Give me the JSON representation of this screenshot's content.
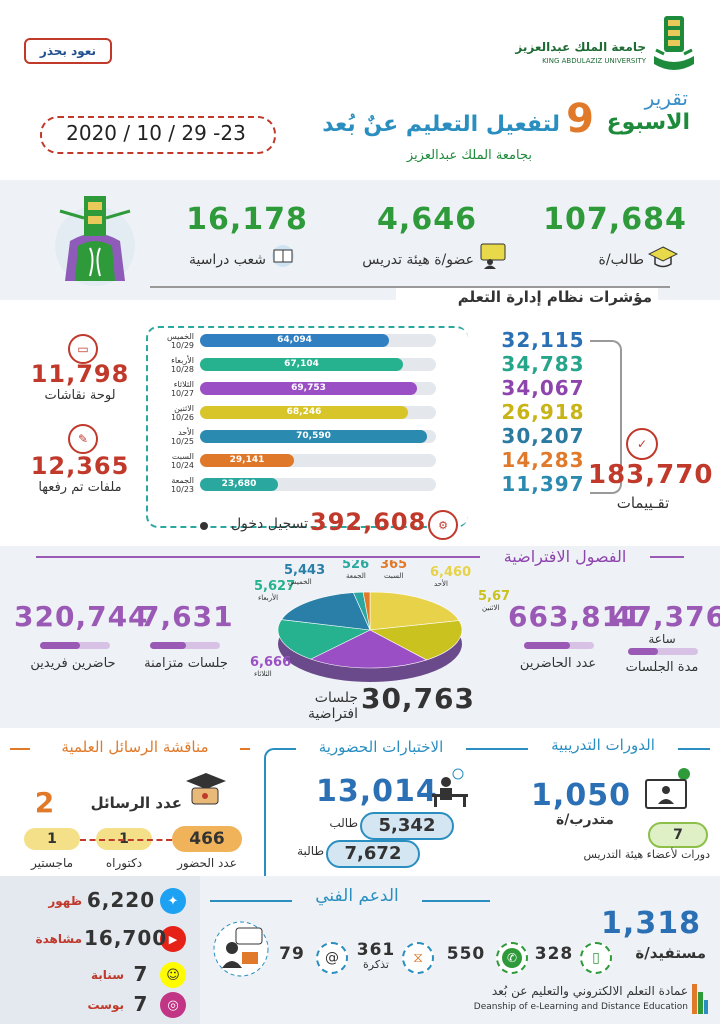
{
  "header": {
    "brand_tag": "نعود بحذر",
    "university_ar": "جامعة الملك عبدالعزيز",
    "university_en": "KING ABDULAZIZ UNIVERSITY",
    "report_label": "تقرير",
    "week_title": "الاسبوع",
    "week_number": "9",
    "title_rest": "لتفعيل التعليم عنٌ بُعد",
    "subtitle": "بجامعة الملك عبدالعزيز",
    "date_range": "2020 / 10 / 29 -23"
  },
  "stats": {
    "students_value": "107,684",
    "students_label": "طالب/ة",
    "faculty_value": "4,646",
    "faculty_label": "عضو/ة هيئة تدريس",
    "sections_value": "16,178",
    "sections_label": "شعب دراسية"
  },
  "lms": {
    "section_title": "مؤشرات نظام إدارة التعلم",
    "discussion_value": "11,798",
    "discussion_label": "لوحة نقاشات",
    "files_value": "12,365",
    "files_label": "ملفات تم رفعها",
    "evaluations_value": "183,770",
    "evaluations_label": "تقـييمات",
    "logins_value": "392,608",
    "logins_label": "تسجيل دخول",
    "days": [
      {
        "name": "الخميس",
        "date": "10/29",
        "bar_value": "64,094",
        "side_value": "32,115",
        "bar_color": "#2f7fc1",
        "side_color": "#2b6fb5",
        "fraction": 0.8
      },
      {
        "name": "الأربعاء",
        "date": "10/28",
        "bar_value": "67,104",
        "side_value": "34,783",
        "bar_color": "#27b28f",
        "side_color": "#27a58a",
        "fraction": 0.86
      },
      {
        "name": "الثلاثاء",
        "date": "10/27",
        "bar_value": "69,753",
        "side_value": "34,067",
        "bar_color": "#9b4fc4",
        "side_color": "#8e44ad",
        "fraction": 0.92
      },
      {
        "name": "الاثنين",
        "date": "10/26",
        "bar_value": "68,246",
        "side_value": "26,918",
        "bar_color": "#d8c52a",
        "side_color": "#c9b417",
        "fraction": 0.88
      },
      {
        "name": "الأحد",
        "date": "10/25",
        "bar_value": "70,590",
        "side_value": "30,207",
        "bar_color": "#2b8ab0",
        "side_color": "#2b7aa0",
        "fraction": 0.96
      },
      {
        "name": "السبت",
        "date": "10/24",
        "bar_value": "29,141",
        "side_value": "14,283",
        "bar_color": "#e0782a",
        "side_color": "#e07a2a",
        "fraction": 0.4
      },
      {
        "name": "الجمعة",
        "date": "10/23",
        "bar_value": "23,680",
        "side_value": "11,397",
        "bar_color": "#2aa8a0",
        "side_color": "#2b8ab0",
        "fraction": 0.33
      }
    ]
  },
  "virtual": {
    "section_title": "الفصول الافتراضية",
    "async_attendees_value": "320,744",
    "async_attendees_label": "حاضرين فريدين",
    "sync_sessions_value": "7,631",
    "sync_sessions_label": "جلسات متزامنة",
    "attendees_value": "663,811",
    "attendees_label": "عدد الحاضرين",
    "duration_value": "47,376",
    "duration_unit": "ساعة",
    "duration_label": "مدة الجلسات",
    "sessions_total_value": "30,763",
    "sessions_total_label": "جلسات افتراضية",
    "pie": [
      {
        "name": "الأحد",
        "value": "6,460",
        "color": "#e7d24a"
      },
      {
        "name": "الاثنين",
        "value": "5,676",
        "color": "#c9c21f"
      },
      {
        "name": "الثلاثاء",
        "value": "6,666",
        "color": "#9b4fc4"
      },
      {
        "name": "الأربعاء",
        "value": "5,627",
        "color": "#27b28f"
      },
      {
        "name": "الخميس",
        "value": "5,443",
        "color": "#2a7fa8"
      },
      {
        "name": "الجمعة",
        "value": "526",
        "color": "#2aa8a0"
      },
      {
        "name": "السبت",
        "value": "365",
        "color": "#e07a2a"
      }
    ]
  },
  "theses": {
    "title": "مناقشة الرسائل العلمية",
    "count_label": "عدد الرسائل",
    "count_value": "2",
    "attendance_value": "466",
    "attendance_label": "عدد الحضور",
    "phd_value": "1",
    "phd_label": "دكتوراه",
    "masters_value": "1",
    "masters_label": "ماجستير"
  },
  "exams": {
    "title": "الاختبارات الحضورية",
    "total_value": "13,014",
    "male_value": "5,342",
    "male_label": "طالب",
    "female_value": "7,672",
    "female_label": "طالبة"
  },
  "training": {
    "title": "الدورات التدريبية",
    "trainees_value": "1,050",
    "trainees_label": "متدرب/ة",
    "courses_value": "7",
    "courses_label": "دورات لأعضاء هيئة التدريس"
  },
  "support": {
    "title": "الدعم الفني",
    "beneficiaries_value": "1,318",
    "beneficiaries_label": "مستفيد/ة",
    "phone_value": "328",
    "whatsapp_value": "550",
    "tickets_value": "361",
    "tickets_label": "تذكرة",
    "email_value": "79"
  },
  "social": {
    "twitter_value": "6,220",
    "twitter_label": "ظهور",
    "youtube_value": "16,700",
    "youtube_label": "مشاهدة",
    "snapchat_value": "7",
    "snapchat_label": "سنابة",
    "instagram_value": "7",
    "instagram_label": "بوست"
  },
  "footer": {
    "deanship_ar": "عمادة التعلم الالكتروني والتعليم عن بُعد",
    "deanship_en": "Deanship of e-Learning and Distance Education"
  }
}
